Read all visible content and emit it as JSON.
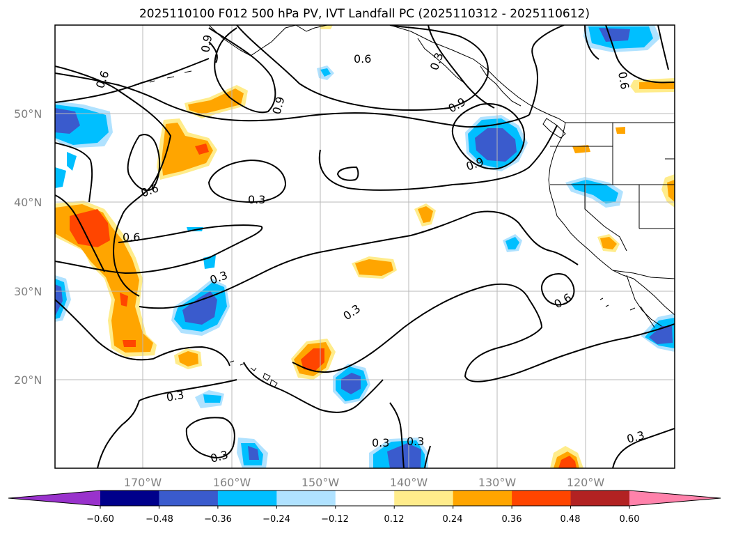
{
  "title": "2025110100 F012 500 hPa PV, IVT Landfall PC (2025110312 - 2025110612)",
  "lat_labels": [
    "50°N",
    "40°N",
    "30°N",
    "20°N"
  ],
  "lon_labels": [
    "170°W",
    "160°W",
    "150°W",
    "140°W",
    "130°W",
    "120°W"
  ],
  "contour_labels": [
    "0.6",
    "0.3",
    "0.9",
    "0.6",
    "0.3",
    "0.9",
    "0.6",
    "0.3",
    "0.6",
    "0.3",
    "0.3",
    "0.3",
    "0.3",
    "0.3",
    "0.6",
    "0.3",
    "0.3",
    "0.9",
    "0.9",
    "0.6"
  ],
  "colorbar": {
    "ticks": [
      "−0.60",
      "−0.48",
      "−0.36",
      "−0.24",
      "−0.12",
      "0.12",
      "0.24",
      "0.36",
      "0.48",
      "0.60"
    ],
    "colors": [
      "#9932cc",
      "#00008b",
      "#3a5bcd",
      "#00bfff",
      "#b0e2ff",
      "#ffffff",
      "#ffec8b",
      "#ffa500",
      "#ff4500",
      "#b22222",
      "#ff82ab"
    ]
  },
  "palette": {
    "neg_strong": "#3a5bcd",
    "neg_mid": "#00bfff",
    "neg_light": "#b0e2ff",
    "pos_light": "#ffec8b",
    "pos_mid": "#ffa500",
    "pos_strong": "#ff4500"
  }
}
